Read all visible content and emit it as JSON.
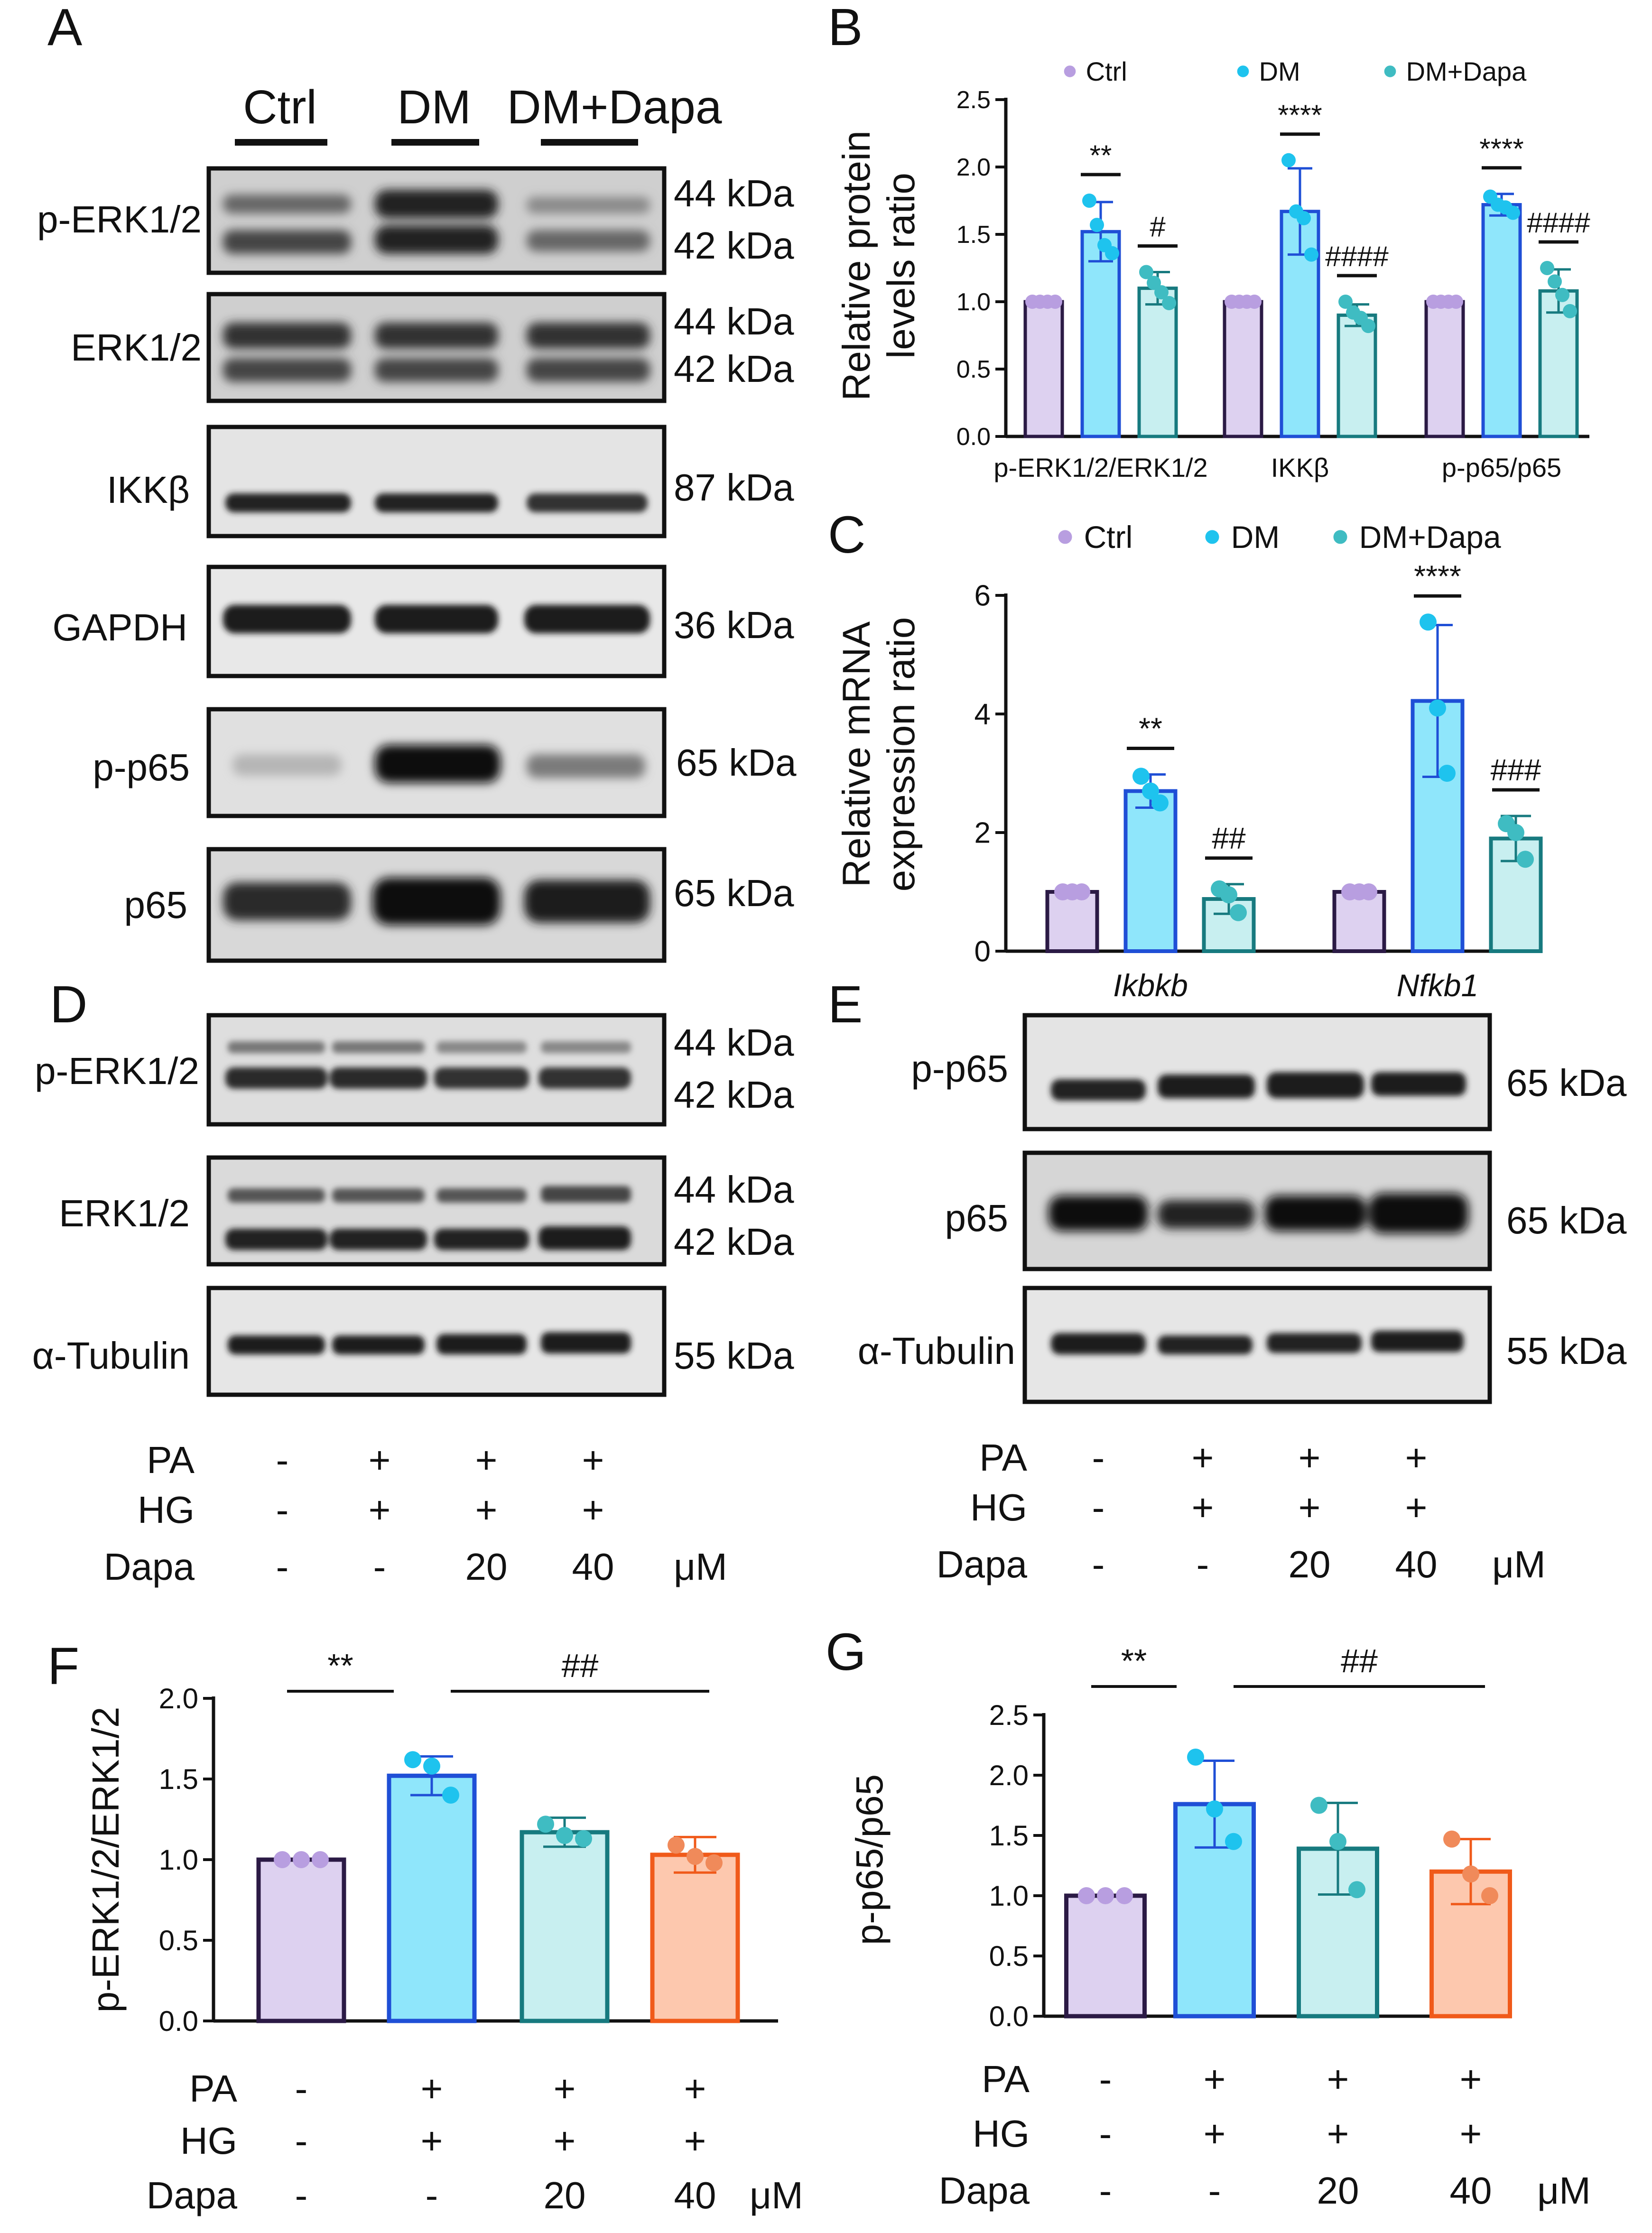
{
  "panels": {
    "A": {
      "letter": "A",
      "groups": [
        "Ctrl",
        "DM",
        "DM+Dapa"
      ],
      "blots": [
        {
          "label": "p-ERK1/2",
          "sizes": [
            "44 kDa",
            "42 kDa"
          ]
        },
        {
          "label": "ERK1/2",
          "sizes": [
            "44 kDa",
            "42 kDa"
          ]
        },
        {
          "label": "IKKβ",
          "sizes": [
            "87 kDa"
          ]
        },
        {
          "label": "GAPDH",
          "sizes": [
            "36 kDa"
          ]
        },
        {
          "label": "p-p65",
          "sizes": [
            "65 kDa"
          ]
        },
        {
          "label": "p65",
          "sizes": [
            "65 kDa"
          ]
        }
      ]
    },
    "D": {
      "letter": "D",
      "blots": [
        {
          "label": "p-ERK1/2",
          "sizes": [
            "44 kDa",
            "42 kDa"
          ]
        },
        {
          "label": "ERK1/2",
          "sizes": [
            "44 kDa",
            "42 kDa"
          ]
        },
        {
          "label": "α-Tubulin",
          "sizes": [
            "55 kDa"
          ]
        }
      ],
      "conditions": [
        {
          "label": "PA",
          "values": [
            "-",
            "+",
            "+",
            "+"
          ]
        },
        {
          "label": "HG",
          "values": [
            "-",
            "+",
            "+",
            "+"
          ]
        },
        {
          "label": "Dapa",
          "values": [
            "-",
            "-",
            "20",
            "40"
          ],
          "unit": "μM"
        }
      ]
    },
    "E": {
      "letter": "E",
      "blots": [
        {
          "label": "p-p65",
          "sizes": [
            "65 kDa"
          ]
        },
        {
          "label": "p65",
          "sizes": [
            "65 kDa"
          ]
        },
        {
          "label": "α-Tubulin",
          "sizes": [
            "55 kDa"
          ]
        }
      ],
      "conditions": [
        {
          "label": "PA",
          "values": [
            "-",
            "+",
            "+",
            "+"
          ]
        },
        {
          "label": "HG",
          "values": [
            "-",
            "+",
            "+",
            "+"
          ]
        },
        {
          "label": "Dapa",
          "values": [
            "-",
            "-",
            "20",
            "40"
          ],
          "unit": "μM"
        }
      ]
    }
  },
  "chart_data": [
    {
      "id": "B",
      "letter": "B",
      "type": "bar",
      "ylabel": [
        "Relative protein",
        "levels ratio"
      ],
      "ylim": [
        0,
        2.5
      ],
      "yticks": [
        "0.0",
        "0.5",
        "1.0",
        "1.5",
        "2.0",
        "2.5"
      ],
      "categories": [
        "p-ERK1/2/ERK1/2",
        "IKKβ",
        "p-p65/p65"
      ],
      "legend": [
        "Ctrl",
        "DM",
        "DM+Dapa"
      ],
      "legend_position": "top",
      "series": [
        {
          "name": "Ctrl",
          "values": [
            1.0,
            1.0,
            1.0
          ],
          "sd": [
            0,
            0,
            0
          ],
          "points": [
            [
              1.0,
              1.0,
              1.0,
              1.0
            ],
            [
              1.0,
              1.0,
              1.0,
              1.0
            ],
            [
              1.0,
              1.0,
              1.0,
              1.0
            ]
          ],
          "fill": "#ddd1f0",
          "stroke": "#2b1a45",
          "dot": "#b89ee0"
        },
        {
          "name": "DM",
          "values": [
            1.52,
            1.67,
            1.72
          ],
          "sd": [
            0.22,
            0.32,
            0.08
          ],
          "points": [
            [
              1.75,
              1.57,
              1.42,
              1.36
            ],
            [
              2.05,
              1.67,
              1.62,
              1.35
            ],
            [
              1.78,
              1.72,
              1.7,
              1.66
            ]
          ],
          "fill": "#8fe6fb",
          "stroke": "#1f4fd6",
          "dot": "#1ec3ee"
        },
        {
          "name": "DM+Dapa",
          "values": [
            1.1,
            0.9,
            1.08
          ],
          "sd": [
            0.12,
            0.08,
            0.16
          ],
          "points": [
            [
              1.22,
              1.14,
              1.07,
              0.99
            ],
            [
              1.0,
              0.92,
              0.88,
              0.82
            ],
            [
              1.25,
              1.15,
              1.05,
              0.93
            ]
          ],
          "fill": "#c8eff0",
          "stroke": "#177a7f",
          "dot": "#3fbcc2"
        }
      ],
      "annotations": [
        {
          "category": 0,
          "series": 1,
          "text": "**"
        },
        {
          "category": 0,
          "series": 2,
          "text": "#"
        },
        {
          "category": 1,
          "series": 1,
          "text": "****"
        },
        {
          "category": 1,
          "series": 2,
          "text": "####"
        },
        {
          "category": 2,
          "series": 1,
          "text": "****"
        },
        {
          "category": 2,
          "series": 2,
          "text": "####"
        }
      ]
    },
    {
      "id": "C",
      "letter": "C",
      "type": "bar",
      "ylabel": [
        "Relative mRNA",
        "expression ratio"
      ],
      "ylim": [
        0,
        6
      ],
      "yticks": [
        "0",
        "2",
        "4",
        "6"
      ],
      "categories": [
        "Ikbkb",
        "Nfkb1"
      ],
      "legend": [
        "Ctrl",
        "DM",
        "DM+Dapa"
      ],
      "legend_position": "top",
      "series": [
        {
          "name": "Ctrl",
          "values": [
            1.0,
            1.0
          ],
          "sd": [
            0,
            0
          ],
          "points": [
            [
              1.0,
              1.0,
              1.0
            ],
            [
              1.0,
              1.0,
              1.0
            ]
          ],
          "fill": "#ddd1f0",
          "stroke": "#2b1a45",
          "dot": "#b89ee0"
        },
        {
          "name": "DM",
          "values": [
            2.7,
            4.22
          ],
          "sd": [
            0.28,
            1.28
          ],
          "points": [
            [
              2.95,
              2.7,
              2.5
            ],
            [
              5.55,
              4.1,
              3.0
            ]
          ],
          "fill": "#8fe6fb",
          "stroke": "#1f4fd6",
          "dot": "#1ec3ee"
        },
        {
          "name": "DM+Dapa",
          "values": [
            0.88,
            1.9
          ],
          "sd": [
            0.25,
            0.38
          ],
          "points": [
            [
              1.05,
              0.95,
              0.65
            ],
            [
              2.15,
              2.0,
              1.55
            ]
          ],
          "fill": "#c8eff0",
          "stroke": "#177a7f",
          "dot": "#3fbcc2"
        }
      ],
      "annotations": [
        {
          "category": 0,
          "series": 1,
          "text": "**"
        },
        {
          "category": 0,
          "series": 2,
          "text": "##"
        },
        {
          "category": 1,
          "series": 1,
          "text": "****"
        },
        {
          "category": 1,
          "series": 2,
          "text": "###"
        }
      ]
    },
    {
      "id": "F",
      "letter": "F",
      "type": "bar",
      "ylabel": [
        "p-ERK1/2/ERK1/2"
      ],
      "ylim": [
        0,
        2.0
      ],
      "yticks": [
        "0.0",
        "0.5",
        "1.0",
        "1.5",
        "2.0"
      ],
      "categories": [
        "1",
        "2",
        "3",
        "4"
      ],
      "values": [
        1.0,
        1.52,
        1.17,
        1.03
      ],
      "sd": [
        0,
        0.12,
        0.09,
        0.11
      ],
      "points": [
        [
          1.0,
          1.0,
          1.0
        ],
        [
          1.62,
          1.58,
          1.4
        ],
        [
          1.22,
          1.15,
          1.13
        ],
        [
          1.09,
          1.02,
          0.98
        ]
      ],
      "colors": [
        {
          "fill": "#ddd1f0",
          "stroke": "#2b1a45",
          "dot": "#b89ee0"
        },
        {
          "fill": "#8fe6fb",
          "stroke": "#1f4fd6",
          "dot": "#1ec3ee"
        },
        {
          "fill": "#c8eff0",
          "stroke": "#177a7f",
          "dot": "#3fbcc2"
        },
        {
          "fill": "#fdc8ae",
          "stroke": "#f05a1a",
          "dot": "#f08a5a"
        }
      ],
      "brackets": [
        {
          "from": 0,
          "to": 1,
          "text": "**"
        },
        {
          "from": 1,
          "to": 3,
          "text": "##"
        }
      ],
      "conditions": [
        {
          "label": "PA",
          "values": [
            "-",
            "+",
            "+",
            "+"
          ]
        },
        {
          "label": "HG",
          "values": [
            "-",
            "+",
            "+",
            "+"
          ]
        },
        {
          "label": "Dapa",
          "values": [
            "-",
            "-",
            "20",
            "40"
          ],
          "unit": "μM"
        }
      ]
    },
    {
      "id": "G",
      "letter": "G",
      "type": "bar",
      "ylabel": [
        "p-p65/p65"
      ],
      "ylim": [
        0,
        2.5
      ],
      "yticks": [
        "0.0",
        "0.5",
        "1.0",
        "1.5",
        "2.0",
        "2.5"
      ],
      "categories": [
        "1",
        "2",
        "3",
        "4"
      ],
      "values": [
        1.0,
        1.76,
        1.39,
        1.2
      ],
      "sd": [
        0,
        0.36,
        0.38,
        0.27
      ],
      "points": [
        [
          1.0,
          1.0,
          1.0
        ],
        [
          2.15,
          1.72,
          1.45
        ],
        [
          1.75,
          1.45,
          1.05
        ],
        [
          1.47,
          1.18,
          1.0
        ]
      ],
      "colors": [
        {
          "fill": "#ddd1f0",
          "stroke": "#2b1a45",
          "dot": "#b89ee0"
        },
        {
          "fill": "#8fe6fb",
          "stroke": "#1f4fd6",
          "dot": "#1ec3ee"
        },
        {
          "fill": "#c8eff0",
          "stroke": "#177a7f",
          "dot": "#3fbcc2"
        },
        {
          "fill": "#fdc8ae",
          "stroke": "#f05a1a",
          "dot": "#f08a5a"
        }
      ],
      "brackets": [
        {
          "from": 0,
          "to": 1,
          "text": "**"
        },
        {
          "from": 1,
          "to": 3,
          "text": "##"
        }
      ],
      "conditions": [
        {
          "label": "PA",
          "values": [
            "-",
            "+",
            "+",
            "+"
          ]
        },
        {
          "label": "HG",
          "values": [
            "-",
            "+",
            "+",
            "+"
          ]
        },
        {
          "label": "Dapa",
          "values": [
            "-",
            "-",
            "20",
            "40"
          ],
          "unit": "μM"
        }
      ]
    }
  ]
}
